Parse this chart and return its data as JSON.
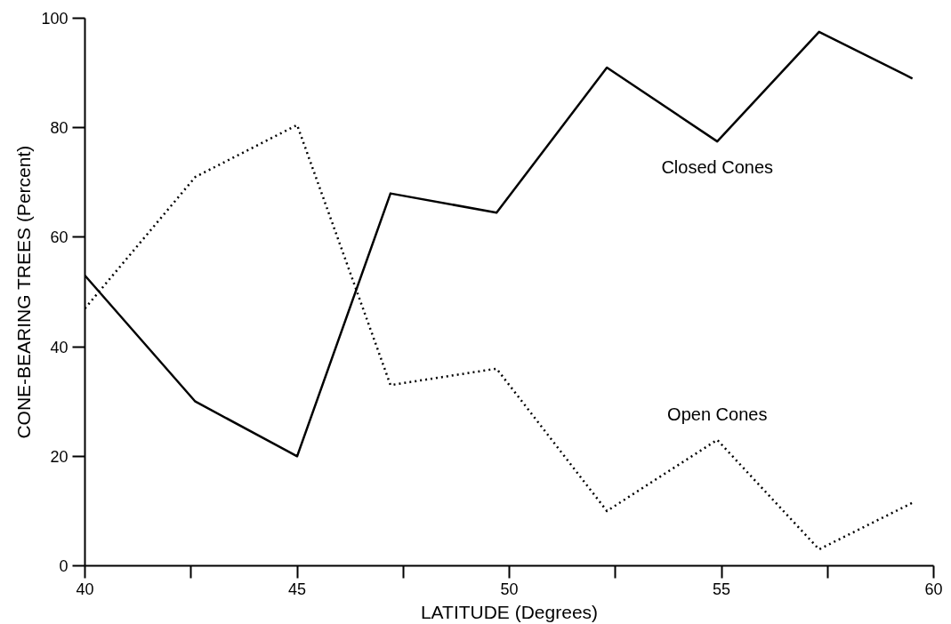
{
  "chart_data": {
    "type": "line",
    "xlabel": "LATITUDE (Degrees)",
    "ylabel": "CONE-BEARING TREES (Percent)",
    "x": [
      40,
      42.6,
      45,
      47.2,
      49.7,
      52.3,
      54.9,
      57.3,
      59.5
    ],
    "series": [
      {
        "name": "Closed Cones",
        "color": "#000000",
        "line_style": "solid",
        "values": [
          53,
          30,
          20,
          68,
          64.5,
          91,
          77.5,
          97.5,
          89
        ]
      },
      {
        "name": "Open Cones",
        "color": "#000000",
        "line_style": "dotted",
        "values": [
          47,
          71,
          80.5,
          33,
          36,
          10,
          23,
          3,
          11.5
        ]
      }
    ],
    "xlim": [
      40,
      60
    ],
    "ylim": [
      0,
      100
    ],
    "xticks": [
      40,
      {
        "value": 42.5,
        "label": null
      },
      45,
      {
        "value": 47.5,
        "label": null
      },
      50,
      {
        "value": 52.5,
        "label": null
      },
      55,
      {
        "value": 57.5,
        "label": null
      },
      60
    ],
    "yticks": [
      0,
      20,
      40,
      60,
      80,
      100
    ],
    "grid": false,
    "marker": "none"
  }
}
